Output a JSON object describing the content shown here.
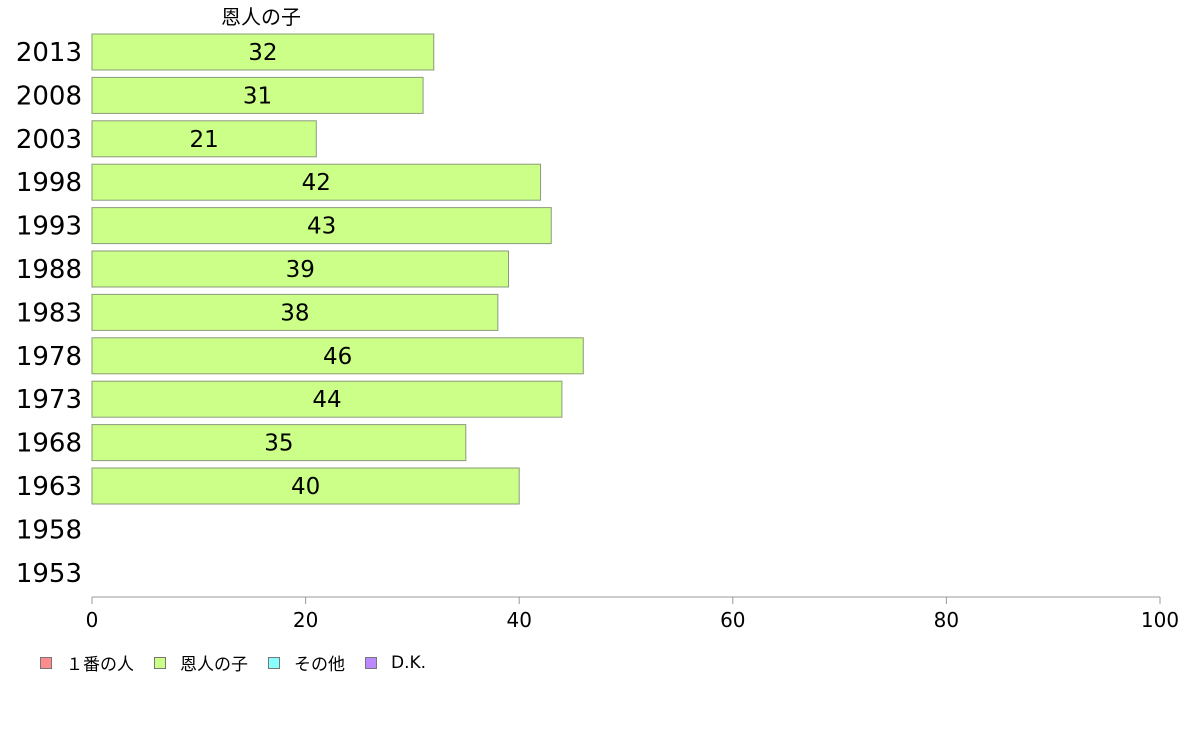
{
  "chart_data": {
    "type": "bar",
    "orientation": "horizontal",
    "title": "恩人の子",
    "categories": [
      "2013",
      "2008",
      "2003",
      "1998",
      "1993",
      "1988",
      "1983",
      "1978",
      "1973",
      "1968",
      "1963",
      "1958",
      "1953"
    ],
    "series": [
      {
        "name": "１番の人",
        "color": "#ff8c8c",
        "values": [
          null,
          null,
          null,
          null,
          null,
          null,
          null,
          null,
          null,
          null,
          null,
          null,
          null
        ]
      },
      {
        "name": "恩人の子",
        "color": "#ccff88",
        "values": [
          32,
          31,
          21,
          42,
          43,
          39,
          38,
          46,
          44,
          35,
          40,
          null,
          null
        ]
      },
      {
        "name": "その他",
        "color": "#88ffff",
        "values": [
          null,
          null,
          null,
          null,
          null,
          null,
          null,
          null,
          null,
          null,
          null,
          null,
          null
        ]
      },
      {
        "name": "D.K.",
        "color": "#bb88ff",
        "values": [
          null,
          null,
          null,
          null,
          null,
          null,
          null,
          null,
          null,
          null,
          null,
          null,
          null
        ]
      }
    ],
    "xlim": [
      0,
      100
    ],
    "xticks": [
      "0",
      "20",
      "40",
      "60",
      "80",
      "100"
    ],
    "legend_position": "bottom-left",
    "grid": false
  }
}
